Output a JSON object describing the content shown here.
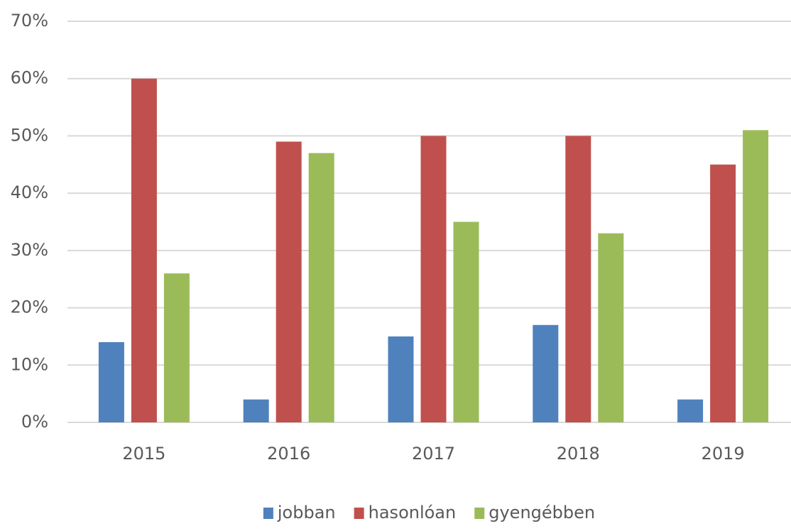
{
  "chart_data": {
    "type": "bar",
    "categories": [
      "2015",
      "2016",
      "2017",
      "2018",
      "2019"
    ],
    "series": [
      {
        "name": "jobban",
        "color": "#4f81bd",
        "values": [
          14,
          4,
          15,
          17,
          4
        ]
      },
      {
        "name": "hasonlóan",
        "color": "#c0504d",
        "values": [
          60,
          49,
          50,
          50,
          45
        ]
      },
      {
        "name": "gyengébben",
        "color": "#9bbb59",
        "values": [
          26,
          47,
          35,
          33,
          51
        ]
      }
    ],
    "ylim": [
      0,
      70
    ],
    "yticks": [
      {
        "value": 0,
        "label": "0%"
      },
      {
        "value": 10,
        "label": "10%"
      },
      {
        "value": 20,
        "label": "20%"
      },
      {
        "value": 30,
        "label": "30%"
      },
      {
        "value": 40,
        "label": "40%"
      },
      {
        "value": 50,
        "label": "50%"
      },
      {
        "value": 60,
        "label": "60%"
      },
      {
        "value": 70,
        "label": "70%"
      }
    ],
    "grid": true,
    "legend": "bottom"
  }
}
